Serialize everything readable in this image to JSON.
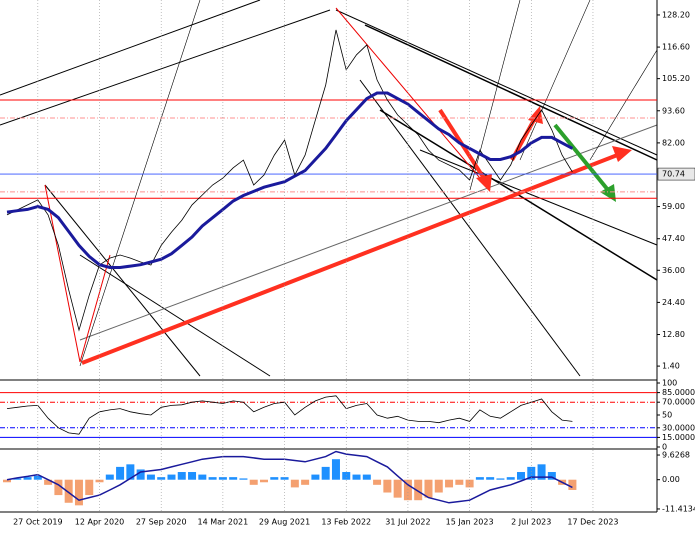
{
  "chart_data": [
    {
      "type": "line",
      "ylim": [
        -2.9,
        133.6
      ],
      "yticks": [
        {
          "value": 128.2,
          "label": "128.20"
        },
        {
          "value": 116.6,
          "label": "116.60"
        },
        {
          "value": 105.2,
          "label": "105.20"
        },
        {
          "value": 93.6,
          "label": "93.60"
        },
        {
          "value": 82,
          "label": "82.00"
        },
        {
          "value": 59,
          "label": "59.00"
        },
        {
          "value": 47.4,
          "label": "47.40"
        },
        {
          "value": 36,
          "label": "36.00"
        },
        {
          "value": 24.4,
          "label": "24.40"
        },
        {
          "value": 12.8,
          "label": "12.80"
        },
        {
          "value": 1.4,
          "label": "1.40"
        }
      ],
      "current": {
        "value": 70.74,
        "label": "70.74"
      },
      "levels": [
        97.5,
        91,
        64.3,
        62
      ],
      "level_colors": [
        "#ff0000",
        "#ff9090",
        "#ff9090",
        "#ff0000"
      ],
      "series": [
        {
          "color": "#000000",
          "values": [
            56,
            57.8,
            59.6,
            61.4,
            56,
            45,
            28.9,
            14.4,
            27,
            37.9,
            40.4,
            41.5,
            40.4,
            39,
            37.9,
            45,
            49.8,
            54.1,
            59.6,
            63.2,
            66.8,
            69.3,
            73,
            75.8,
            66.8,
            70.4,
            77.6,
            83,
            70.4,
            77.6,
            90.3,
            102.9,
            122.8,
            108.4,
            113.8,
            117.4,
            104.7,
            97.5,
            92.1,
            88.5,
            84.9,
            79.4,
            75.8,
            74,
            72.2,
            68.6,
            79.4,
            74,
            68.6,
            74,
            83,
            88.5,
            93.9,
            86.7,
            77.6,
            71.5,
            null,
            null
          ]
        },
        {
          "color": "#1a1a9c",
          "values": [
            57,
            57.5,
            58,
            59,
            58,
            55,
            50,
            45,
            41,
            38,
            37,
            37,
            37.5,
            38,
            39,
            40,
            42,
            45,
            48,
            52,
            55,
            58,
            61,
            63,
            64.5,
            66,
            67,
            68,
            70,
            72,
            76,
            80,
            85,
            90,
            94,
            98,
            100,
            100,
            98,
            96,
            93,
            90,
            87,
            85,
            82,
            80,
            78,
            76,
            76,
            77,
            79,
            82,
            84,
            84,
            82,
            80,
            null,
            null
          ]
        }
      ]
    },
    {
      "type": "line",
      "ylim": [
        0,
        100
      ],
      "yticks": [
        100,
        {
          "value": 85,
          "label": "85.0000"
        },
        {
          "value": 70,
          "label": "70.0000"
        },
        50,
        {
          "value": 30,
          "label": "30.0000"
        },
        {
          "value": 15,
          "label": "15.0000"
        },
        0
      ],
      "levels": [
        85,
        70,
        30,
        15
      ],
      "level_colors": [
        "#ff0000",
        "#ff0000",
        "#0000ff",
        "#0000ff"
      ],
      "series": [
        {
          "color": "#000000",
          "values": [
            60,
            62,
            64,
            65,
            45,
            30,
            22,
            20,
            45,
            55,
            58,
            60,
            55,
            52,
            50,
            62,
            65,
            66,
            70,
            72,
            70,
            68,
            72,
            70,
            55,
            62,
            68,
            70,
            50,
            62,
            72,
            78,
            80,
            60,
            65,
            68,
            50,
            45,
            48,
            42,
            40,
            40,
            38,
            42,
            45,
            40,
            58,
            48,
            45,
            55,
            65,
            70,
            75,
            55,
            42,
            40,
            null,
            null
          ]
        }
      ]
    },
    {
      "type": "bar",
      "ylim": [
        -12.6,
        11.2
      ],
      "yticks": [
        {
          "value": 9.6268,
          "label": "9.6268"
        },
        {
          "value": 0,
          "label": "0.00"
        },
        {
          "value": -11.4134,
          "label": "-11.4134"
        }
      ],
      "up_color": "#1e90ff",
      "down_color": "#f4a070",
      "categories": [
        null,
        null,
        null,
        "27 Oct 2019",
        null,
        null,
        null,
        null,
        null,
        "12 Apr 2020",
        null,
        null,
        null,
        null,
        null,
        "27 Sep 2020",
        null,
        null,
        null,
        null,
        null,
        "14 Mar 2021",
        null,
        null,
        null,
        null,
        null,
        "29 Aug 2021",
        null,
        null,
        null,
        null,
        null,
        "13 Feb 2022",
        null,
        null,
        null,
        null,
        null,
        "31 Jul 2022",
        null,
        null,
        null,
        null,
        null,
        "15 Jan 2023",
        null,
        null,
        null,
        null,
        null,
        "2 Jul 2023",
        null,
        null,
        null,
        null,
        null,
        "17 Dec 2023"
      ],
      "values": [
        -1,
        0.5,
        1,
        1.5,
        -2,
        -6,
        -9,
        -10,
        -6,
        -1,
        2,
        5,
        6,
        4,
        2,
        1,
        2,
        3,
        3,
        2,
        1,
        1,
        1,
        0.5,
        -2,
        -1,
        1,
        1,
        -3,
        -2,
        2,
        5,
        8,
        3,
        2,
        2,
        -2,
        -5,
        -7,
        -8,
        -8,
        -7,
        -5,
        -3,
        -2,
        -3,
        1,
        1,
        0.5,
        1,
        3,
        5,
        6,
        3,
        -2,
        -4,
        null,
        null
      ],
      "line": {
        "color": "#1a1a9c",
        "values": [
          0,
          0.7,
          1.3,
          2,
          0,
          -2,
          -5,
          -8,
          -7,
          -6,
          -4,
          -2,
          0.5,
          3,
          3.5,
          4,
          5,
          6,
          7,
          8,
          8.5,
          9,
          9,
          9,
          8.5,
          8,
          8,
          8,
          7.5,
          7,
          8,
          9,
          11,
          10,
          9.5,
          9,
          7,
          5,
          1.5,
          -2,
          -4.5,
          -7,
          -8,
          -9,
          -8.5,
          -8,
          -6,
          -4,
          -3,
          -2,
          -0.5,
          1,
          1,
          1,
          -1,
          -3,
          null,
          null
        ]
      }
    }
  ]
}
